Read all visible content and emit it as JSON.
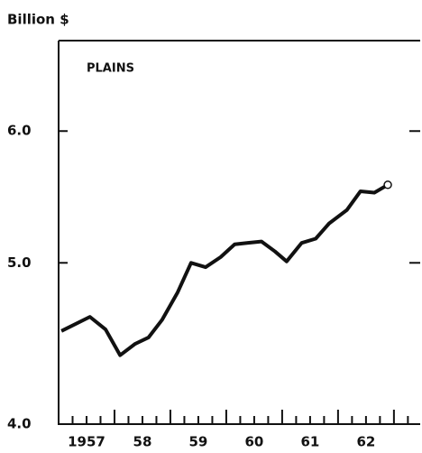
{
  "chart_data": {
    "type": "line",
    "y_axis_label": "Billion $",
    "annotation": "PLAINS",
    "log_scale": true,
    "x": [
      1957.05,
      1957.56,
      1957.84,
      1958.1,
      1958.37,
      1958.61,
      1958.85,
      1959.13,
      1959.37,
      1959.63,
      1959.9,
      1960.15,
      1960.39,
      1960.63,
      1960.87,
      1961.08,
      1961.35,
      1961.6,
      1961.84,
      1962.16,
      1962.4,
      1962.65,
      1962.89
    ],
    "series": [
      {
        "color": "#111111",
        "values": [
          4.55,
          4.64,
          4.56,
          4.4,
          4.47,
          4.51,
          4.62,
          4.8,
          5.0,
          4.97,
          5.04,
          5.13,
          5.14,
          5.15,
          5.08,
          5.01,
          5.14,
          5.17,
          5.28,
          5.38,
          5.52,
          5.51,
          5.57
        ]
      }
    ],
    "xlim": [
      1957,
      1963.47
    ],
    "xticks": [
      {
        "value": 1957.5,
        "label": "1957"
      },
      {
        "value": 1958.5,
        "label": "58"
      },
      {
        "value": 1959.5,
        "label": "59"
      },
      {
        "value": 1960.5,
        "label": "60"
      },
      {
        "value": 1961.5,
        "label": "61"
      },
      {
        "value": 1962.5,
        "label": "62"
      }
    ],
    "ylim": [
      4.0,
      6.8
    ],
    "yticks": [
      {
        "value": 4,
        "label": "4.0"
      },
      {
        "value": 5,
        "label": "5.0"
      },
      {
        "value": 6,
        "label": "6.0"
      }
    ]
  }
}
